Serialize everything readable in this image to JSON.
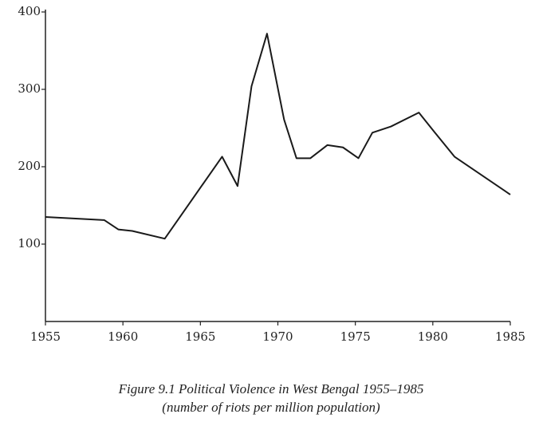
{
  "chart_data": {
    "type": "line",
    "title": "Figure 9.1 Political Violence in West Bengal 1955–1985",
    "subtitle": "(number of riots per million population)",
    "x": [
      1955,
      1958.8,
      1959.7,
      1960.6,
      1962.7,
      1966.4,
      1967.4,
      1968.3,
      1969.3,
      1970.4,
      1971.2,
      1972.1,
      1973.2,
      1974.2,
      1975.2,
      1976.1,
      1977.3,
      1979.1,
      1980.1,
      1981.4,
      1985
    ],
    "series": [
      {
        "color": "#1a1a1a",
        "values": [
          135,
          131,
          119,
          117,
          107,
          213,
          175,
          304,
          372,
          261,
          211,
          211,
          228,
          225,
          211,
          244,
          252,
          270,
          245,
          213,
          164
        ]
      }
    ],
    "xlim": [
      1955,
      1985
    ],
    "xticks": [
      1955,
      1960,
      1965,
      1970,
      1975,
      1980,
      1985
    ],
    "ylim": [
      0,
      400
    ],
    "yticks": [
      100,
      200,
      300,
      400
    ]
  }
}
